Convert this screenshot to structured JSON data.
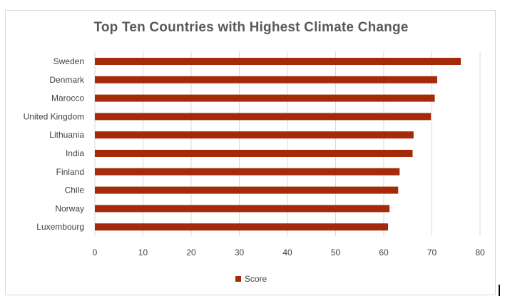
{
  "chart_data": {
    "type": "bar",
    "orientation": "horizontal",
    "title": "Top Ten Countries with Highest Climate Change",
    "categories": [
      "Sweden",
      "Denmark",
      "Marocco",
      "United Kingdom",
      "Lithuania",
      "India",
      "Finland",
      "Chile",
      "Norway",
      "Luxembourg"
    ],
    "series": [
      {
        "name": "Score",
        "color": "#a52a0a",
        "values": [
          76.0,
          71.1,
          70.6,
          69.8,
          66.2,
          66.0,
          63.3,
          63.0,
          61.2,
          60.9
        ]
      }
    ],
    "xlim": [
      0,
      80
    ],
    "x_ticks": [
      0,
      10,
      20,
      30,
      40,
      50,
      60,
      70,
      80
    ],
    "grid": true,
    "legend_position": "bottom"
  }
}
